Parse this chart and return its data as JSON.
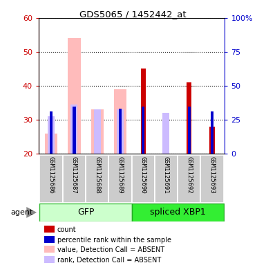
{
  "title": "GDS5065 / 1452442_at",
  "samples": [
    "GSM1125686",
    "GSM1125687",
    "GSM1125688",
    "GSM1125689",
    "GSM1125690",
    "GSM1125691",
    "GSM1125692",
    "GSM1125693"
  ],
  "value_absent": [
    26,
    54,
    33,
    39,
    0,
    0,
    0,
    0
  ],
  "rank_absent": [
    31,
    34.5,
    33,
    33,
    0,
    32,
    0,
    0
  ],
  "count_red": [
    0,
    0,
    0,
    0,
    45,
    0,
    41,
    28
  ],
  "percentile_blue": [
    31,
    34.5,
    0,
    33,
    34.5,
    0,
    34.5,
    31
  ],
  "ylim_left": [
    20,
    60
  ],
  "ylim_right": [
    0,
    100
  ],
  "yticks_left": [
    20,
    30,
    40,
    50,
    60
  ],
  "yticks_right": [
    0,
    25,
    50,
    75,
    100
  ],
  "ytick_labels_right": [
    "0",
    "25",
    "50",
    "75",
    "100%"
  ],
  "absent_value_color": "#ffbbbb",
  "absent_rank_color": "#ccbbff",
  "count_color": "#cc0000",
  "percentile_color": "#0000cc",
  "left_axis_color": "#cc0000",
  "right_axis_color": "#0000cc",
  "gfp_color_light": "#ccffcc",
  "gfp_color_dark": "#44dd44",
  "xbp1_color": "#33ee33",
  "xbp1_edge": "#22bb22"
}
